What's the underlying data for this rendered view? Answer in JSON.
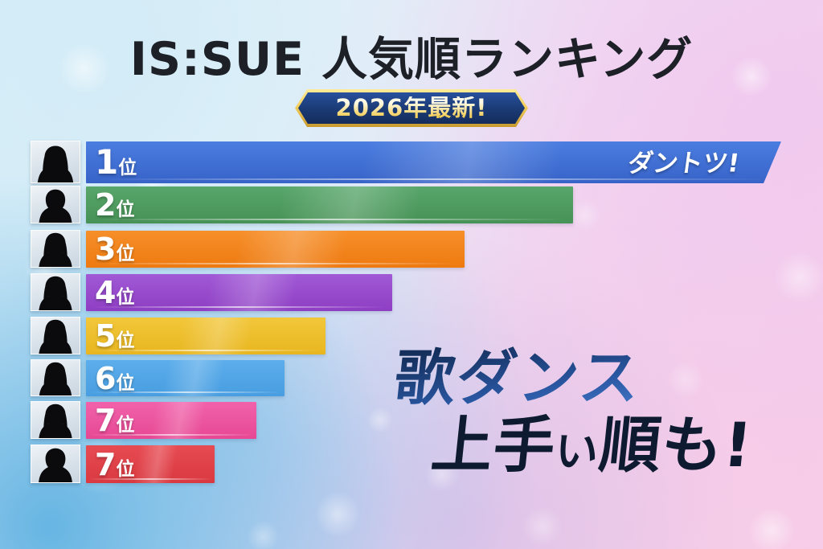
{
  "header": {
    "title": "IS:SUE 人気順ランキング",
    "badge": "2026年最新!"
  },
  "overlay_note": {
    "line1": "歌ダンス",
    "line2_prefix": "上手",
    "line2_small": "い",
    "line2_suffix": "順も!"
  },
  "chart_data": {
    "type": "bar",
    "orientation": "horizontal",
    "title": "IS:SUE 人気順ランキング",
    "subtitle": "2026年最新!",
    "note": "歌ダンス上手い順も!",
    "categories": [
      "1位",
      "2位",
      "3位",
      "4位",
      "5位",
      "6位",
      "7位",
      "7位"
    ],
    "values": [
      100,
      70,
      54.5,
      44,
      34.5,
      28.5,
      24.5,
      18.5
    ],
    "value_unit": "relative popularity (% of 1st place bar length)",
    "legend": "none",
    "grid": false,
    "bars": [
      {
        "rank_number": "1",
        "rank_unit": "位",
        "value": 100,
        "color_top": "#4b7de0",
        "color_bottom": "#3763c8",
        "annotation": "ダントツ!",
        "avatar": "person-long-hair"
      },
      {
        "rank_number": "2",
        "rank_unit": "位",
        "value": 70,
        "color_top": "#58a66b",
        "color_bottom": "#479256",
        "annotation": "",
        "avatar": "person-short-hair"
      },
      {
        "rank_number": "3",
        "rank_unit": "位",
        "value": 54.5,
        "color_top": "#f68f2a",
        "color_bottom": "#ee7a10",
        "annotation": "",
        "avatar": "person-long-hair"
      },
      {
        "rank_number": "4",
        "rank_unit": "位",
        "value": 44,
        "color_top": "#a159d6",
        "color_bottom": "#8e3ec3",
        "annotation": "",
        "avatar": "person-long-hair"
      },
      {
        "rank_number": "5",
        "rank_unit": "位",
        "value": 34.5,
        "color_top": "#f2c73b",
        "color_bottom": "#e8b61f",
        "annotation": "",
        "avatar": "person-long-hair"
      },
      {
        "rank_number": "6",
        "rank_unit": "位",
        "value": 28.5,
        "color_top": "#5cadeb",
        "color_bottom": "#489ee1",
        "annotation": "",
        "avatar": "person-long-hair"
      },
      {
        "rank_number": "7",
        "rank_unit": "位",
        "value": 24.5,
        "color_top": "#f162ab",
        "color_bottom": "#e74894",
        "annotation": "",
        "avatar": "person-long-hair"
      },
      {
        "rank_number": "7",
        "rank_unit": "位",
        "value": 18.5,
        "color_top": "#e74b52",
        "color_bottom": "#da3941",
        "annotation": "",
        "avatar": "person-short-hair"
      }
    ]
  }
}
